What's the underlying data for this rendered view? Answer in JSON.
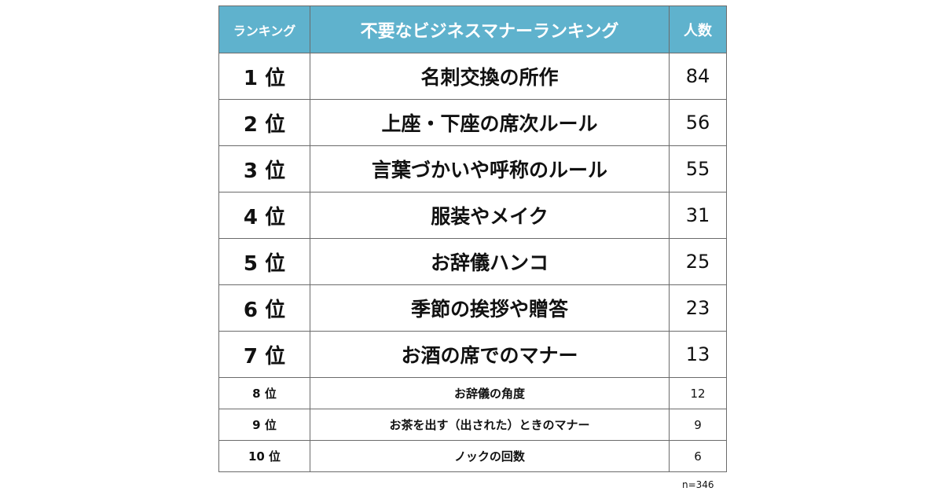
{
  "chart_data": {
    "type": "table",
    "title": "不要なビジネスマナーランキング",
    "columns": [
      "ランキング",
      "不要なビジネスマナーランキング",
      "人数"
    ],
    "rows": [
      {
        "rank": "1 位",
        "item": "名刺交換の所作",
        "count": 84
      },
      {
        "rank": "2 位",
        "item": "上座・下座の席次ルール",
        "count": 56
      },
      {
        "rank": "3 位",
        "item": "言葉づかいや呼称のルール",
        "count": 55
      },
      {
        "rank": "4 位",
        "item": "服装やメイク",
        "count": 31
      },
      {
        "rank": "5 位",
        "item": "お辞儀ハンコ",
        "count": 25
      },
      {
        "rank": "6 位",
        "item": "季節の挨拶や贈答",
        "count": 23
      },
      {
        "rank": "7 位",
        "item": "お酒の席でのマナー",
        "count": 13
      },
      {
        "rank": "8 位",
        "item": "お辞儀の角度",
        "count": 12
      },
      {
        "rank": "9 位",
        "item": "お茶を出す（出された）ときのマナー",
        "count": 9
      },
      {
        "rank": "10 位",
        "item": "ノックの回数",
        "count": 6
      }
    ],
    "note": "n=346"
  },
  "colors": {
    "header_bg": "#5fb2cd",
    "header_text": "#ffffff",
    "border": "#6b6b6b"
  }
}
